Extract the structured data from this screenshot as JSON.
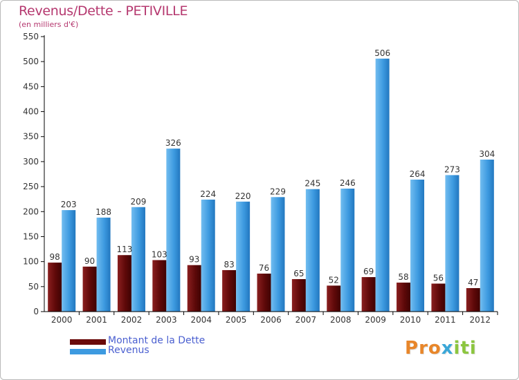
{
  "header": {
    "title": "Revenus/Dette - PETIVILLE",
    "subtitle": "(en milliers d'€)"
  },
  "colors": {
    "title": "#b5386f",
    "dette": "#7a1414",
    "revenus": "#3d9ae0",
    "legend_text": "#4a5fd0",
    "axis": "#000000",
    "grid": "#d0d0d0"
  },
  "legend": {
    "items": [
      {
        "label": "Montant de la Dette",
        "color": "#6a0a0a"
      },
      {
        "label": "Revenus",
        "color": "#3d9ae0"
      }
    ]
  },
  "logo": {
    "text": "Proxiti",
    "letter_colors": [
      "#e8862a",
      "#e8862a",
      "#e8862a",
      "#3aa7d8",
      "#8cc63f",
      "#8cc63f",
      "#8cc63f"
    ]
  },
  "chart_data": {
    "type": "bar",
    "categories": [
      "2000",
      "2001",
      "2002",
      "2003",
      "2004",
      "2005",
      "2006",
      "2007",
      "2008",
      "2009",
      "2010",
      "2011",
      "2012"
    ],
    "series": [
      {
        "name": "Montant de la Dette",
        "values": [
          98,
          90,
          113,
          103,
          93,
          83,
          76,
          65,
          52,
          69,
          58,
          56,
          47
        ]
      },
      {
        "name": "Revenus",
        "values": [
          203,
          188,
          209,
          326,
          224,
          220,
          229,
          245,
          246,
          506,
          264,
          273,
          304
        ]
      }
    ],
    "yticks": [
      0,
      50,
      100,
      150,
      200,
      250,
      300,
      350,
      400,
      450,
      500,
      550
    ],
    "ylim": [
      0,
      550
    ],
    "grid": false,
    "legend_position": "bottom-left"
  }
}
